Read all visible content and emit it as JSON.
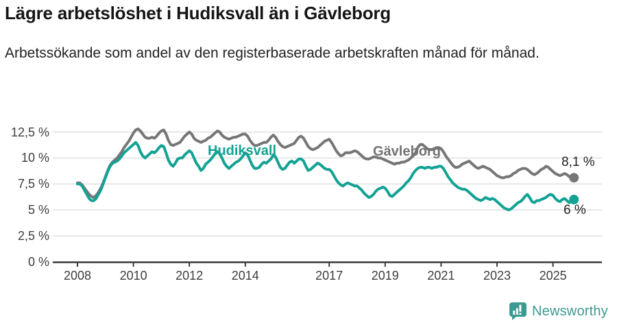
{
  "title": "Lägre arbetslöshet i Hudiksvall än i Gävleborg",
  "subtitle": "Arbetssökande som andel av den registerbaserade arbetskraften månad för månad.",
  "chart_data": {
    "type": "line",
    "x_unit": "month",
    "x_start": "2008-01",
    "x_end": "2025-10",
    "x_tick_years": [
      2008,
      2010,
      2012,
      2014,
      2017,
      2019,
      2021,
      2023,
      2025
    ],
    "y_tick_values": [
      0,
      2.5,
      5,
      7.5,
      10,
      12.5
    ],
    "y_tick_labels": [
      "0 %",
      "2,5 %",
      "5 %",
      "7,5 %",
      "10 %",
      "12,5 %"
    ],
    "ylim": [
      0,
      13.3
    ],
    "grid": true,
    "legend": "inline-labels-on-lines",
    "colors": {
      "grid": "#dcdcdc",
      "axis": "#3a3a3a",
      "tick_text": "#3d3d3d",
      "end_label_text": "#1f1f1f"
    },
    "series": [
      {
        "name": "Hudiksvall",
        "color": "#13a294",
        "end_label": "6 %",
        "end_value": 6.0,
        "values": [
          7.5,
          7.5,
          7.3,
          6.9,
          6.5,
          6.1,
          5.9,
          5.9,
          6.1,
          6.5,
          6.9,
          7.5,
          8.1,
          8.7,
          9.2,
          9.5,
          9.6,
          9.7,
          9.9,
          10.2,
          10.5,
          10.7,
          10.9,
          11.1,
          11.3,
          11.5,
          11.2,
          10.6,
          10.2,
          10.0,
          10.2,
          10.4,
          10.6,
          10.5,
          10.7,
          11.0,
          11.2,
          11.1,
          10.5,
          9.8,
          9.4,
          9.2,
          9.5,
          9.9,
          10.0,
          10.0,
          10.3,
          10.5,
          10.7,
          10.5,
          10.0,
          9.5,
          9.2,
          8.8,
          9.0,
          9.4,
          9.6,
          9.8,
          10.1,
          10.4,
          10.6,
          10.4,
          10.0,
          9.5,
          9.2,
          9.0,
          9.2,
          9.4,
          9.6,
          9.7,
          9.9,
          10.2,
          10.5,
          10.3,
          9.8,
          9.3,
          9.0,
          9.0,
          9.1,
          9.4,
          9.6,
          9.5,
          9.7,
          9.9,
          10.3,
          10.1,
          9.6,
          9.1,
          8.9,
          9.0,
          9.3,
          9.6,
          9.7,
          9.5,
          9.7,
          9.9,
          9.9,
          9.7,
          9.2,
          8.8,
          8.9,
          9.1,
          9.3,
          9.5,
          9.4,
          9.2,
          9.0,
          8.9,
          8.9,
          8.7,
          8.3,
          7.9,
          7.6,
          7.4,
          7.3,
          7.5,
          7.6,
          7.5,
          7.4,
          7.3,
          7.3,
          7.1,
          6.9,
          6.6,
          6.4,
          6.2,
          6.3,
          6.5,
          6.8,
          7.0,
          7.1,
          7.2,
          7.1,
          6.8,
          6.4,
          6.3,
          6.5,
          6.7,
          6.9,
          7.1,
          7.3,
          7.6,
          7.8,
          8.1,
          8.5,
          8.8,
          9.0,
          9.1,
          9.1,
          9.0,
          9.1,
          9.1,
          9.0,
          9.1,
          9.1,
          9.2,
          9.2,
          9.0,
          8.6,
          8.2,
          7.9,
          7.6,
          7.4,
          7.2,
          7.1,
          7.0,
          7.0,
          6.9,
          6.7,
          6.5,
          6.3,
          6.1,
          6.0,
          5.9,
          6.0,
          6.2,
          6.1,
          6.0,
          6.1,
          6.0,
          5.8,
          5.6,
          5.4,
          5.2,
          5.1,
          5.0,
          5.1,
          5.3,
          5.5,
          5.7,
          5.8,
          6.0,
          6.3,
          6.5,
          6.2,
          5.8,
          5.7,
          5.9,
          5.9,
          6.0,
          6.1,
          6.2,
          6.4,
          6.5,
          6.4,
          6.1,
          5.9,
          5.8,
          6.0,
          6.1,
          5.9,
          5.7,
          5.9,
          6.0
        ]
      },
      {
        "name": "Gävleborg",
        "color": "#767676",
        "end_label": "8,1 %",
        "end_value": 8.1,
        "values": [
          7.6,
          7.6,
          7.4,
          7.1,
          6.8,
          6.5,
          6.3,
          6.2,
          6.4,
          6.7,
          7.1,
          7.6,
          8.2,
          8.8,
          9.3,
          9.6,
          9.8,
          10.0,
          10.3,
          10.6,
          11.0,
          11.3,
          11.6,
          12.0,
          12.4,
          12.7,
          12.8,
          12.6,
          12.3,
          12.0,
          11.9,
          11.9,
          12.0,
          11.9,
          12.1,
          12.4,
          12.6,
          12.7,
          12.3,
          11.7,
          11.3,
          11.2,
          11.3,
          11.4,
          11.5,
          11.8,
          12.1,
          12.3,
          12.5,
          12.3,
          11.9,
          11.7,
          11.6,
          11.5,
          11.6,
          11.7,
          11.9,
          12.0,
          12.2,
          12.4,
          12.6,
          12.5,
          12.2,
          12.0,
          11.9,
          11.8,
          11.9,
          12.0,
          12.0,
          12.1,
          12.2,
          12.3,
          12.3,
          12.1,
          11.7,
          11.4,
          11.2,
          11.2,
          11.3,
          11.4,
          11.5,
          11.5,
          11.7,
          12.0,
          12.2,
          12.0,
          11.6,
          11.3,
          11.1,
          11.0,
          11.1,
          11.2,
          11.3,
          11.4,
          11.7,
          12.0,
          12.1,
          11.9,
          11.5,
          11.1,
          10.9,
          10.8,
          10.9,
          11.0,
          11.2,
          11.4,
          11.6,
          11.7,
          11.8,
          11.5,
          11.1,
          10.7,
          10.4,
          10.2,
          10.3,
          10.5,
          10.5,
          10.5,
          10.6,
          10.7,
          10.6,
          10.4,
          10.2,
          10.0,
          9.9,
          9.9,
          10.0,
          10.1,
          10.1,
          10.0,
          10.0,
          9.9,
          9.8,
          9.7,
          9.6,
          9.5,
          9.4,
          9.5,
          9.5,
          9.6,
          9.6,
          9.7,
          9.8,
          10.0,
          10.2,
          10.5,
          11.0,
          11.3,
          11.3,
          11.1,
          10.9,
          10.8,
          10.8,
          10.9,
          11.0,
          11.0,
          10.9,
          10.6,
          10.2,
          9.9,
          9.6,
          9.3,
          9.1,
          9.1,
          9.2,
          9.4,
          9.5,
          9.6,
          9.7,
          9.5,
          9.3,
          9.1,
          9.0,
          9.1,
          9.2,
          9.1,
          9.0,
          8.9,
          8.7,
          8.5,
          8.3,
          8.2,
          8.1,
          8.1,
          8.2,
          8.2,
          8.3,
          8.5,
          8.6,
          8.8,
          8.9,
          9.0,
          9.0,
          8.9,
          8.7,
          8.5,
          8.4,
          8.5,
          8.7,
          8.9,
          9.0,
          9.2,
          9.1,
          8.9,
          8.7,
          8.5,
          8.4,
          8.3,
          8.4,
          8.5,
          8.4,
          8.2,
          8.1,
          8.1
        ]
      }
    ]
  },
  "branding": {
    "name": "Newsworthy",
    "color": "#3b9a92",
    "icon": "newsworthy-bubble-barchart-icon"
  }
}
